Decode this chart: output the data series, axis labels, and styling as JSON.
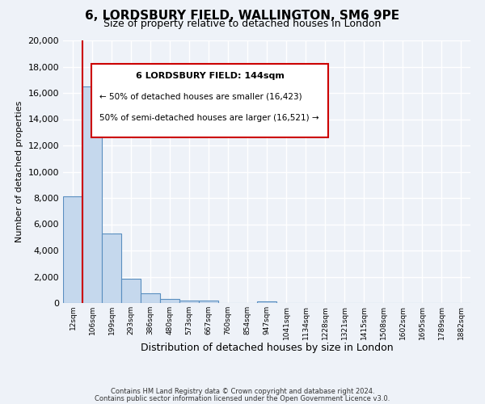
{
  "title": "6, LORDSBURY FIELD, WALLINGTON, SM6 9PE",
  "subtitle": "Size of property relative to detached houses in London",
  "xlabel": "Distribution of detached houses by size in London",
  "ylabel": "Number of detached properties",
  "bar_color": "#c5d8ed",
  "bar_edge_color": "#5a8fc0",
  "background_color": "#eef2f8",
  "grid_color": "#ffffff",
  "annotation_box_color": "#ffffff",
  "annotation_border_color": "#cc0000",
  "red_line_color": "#cc0000",
  "categories": [
    "12sqm",
    "106sqm",
    "199sqm",
    "293sqm",
    "386sqm",
    "480sqm",
    "573sqm",
    "667sqm",
    "760sqm",
    "854sqm",
    "947sqm",
    "1041sqm",
    "1134sqm",
    "1228sqm",
    "1321sqm",
    "1415sqm",
    "1508sqm",
    "1602sqm",
    "1695sqm",
    "1789sqm",
    "1882sqm"
  ],
  "values": [
    8100,
    16500,
    5300,
    1850,
    750,
    320,
    200,
    170,
    0,
    0,
    150,
    0,
    0,
    0,
    0,
    0,
    0,
    0,
    0,
    0,
    0
  ],
  "ylim": [
    0,
    20000
  ],
  "yticks": [
    0,
    2000,
    4000,
    6000,
    8000,
    10000,
    12000,
    14000,
    16000,
    18000,
    20000
  ],
  "red_line_x": 1.0,
  "annotation_title": "6 LORDSBURY FIELD: 144sqm",
  "annotation_line1": "← 50% of detached houses are smaller (16,423)",
  "annotation_line2": "50% of semi-detached houses are larger (16,521) →",
  "footer_line1": "Contains HM Land Registry data © Crown copyright and database right 2024.",
  "footer_line2": "Contains public sector information licensed under the Open Government Licence v3.0."
}
